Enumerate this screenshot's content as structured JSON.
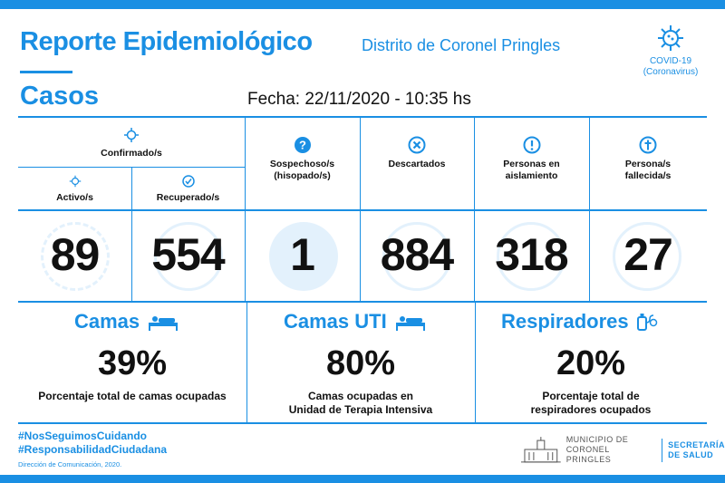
{
  "header": {
    "title": "Reporte Epidemiológico",
    "subtitle": "Distrito de Coronel Pringles",
    "covid_line1": "COVID-19",
    "covid_line2": "(Coronavirus)"
  },
  "casos": {
    "title": "Casos",
    "fecha": "Fecha: 22/11/2020 - 10:35 hs"
  },
  "columns": {
    "confirmados": "Confirmado/s",
    "activos": "Activo/s",
    "recuperados": "Recuperado/s",
    "sospechosos_line1": "Sospechoso/s",
    "sospechosos_line2": "(hisopado/s)",
    "descartados": "Descartados",
    "aislamiento_line1": "Personas en",
    "aislamiento_line2": "aislamiento",
    "fallecidos_line1": "Persona/s",
    "fallecidos_line2": "fallecida/s"
  },
  "values": {
    "activos": "89",
    "recuperados": "554",
    "sospechosos": "1",
    "descartados": "884",
    "aislamiento": "318",
    "fallecidos": "27"
  },
  "ocupacion": {
    "camas_title": "Camas",
    "camas_pct": "39%",
    "camas_label": "Porcentaje total de camas ocupadas",
    "uti_title": "Camas UTI",
    "uti_pct": "80%",
    "uti_label_line1": "Camas ocupadas en",
    "uti_label_line2": "Unidad de Terapia Intensiva",
    "resp_title": "Respiradores",
    "resp_pct": "20%",
    "resp_label_line1": "Porcentaje total de",
    "resp_label_line2": "respiradores ocupados"
  },
  "footer": {
    "hashtag1": "#NosSeguimosCuidando",
    "hashtag2": "#ResponsabilidadCiudadana",
    "credit": "Dirección de Comunicación, 2020.",
    "muni_line1": "MUNICIPIO DE",
    "muni_line2": "CORONEL PRINGLES",
    "secre_line1": "SECRETARÍA",
    "secre_line2": "DE SALUD"
  },
  "colors": {
    "accent": "#1a8fe3",
    "light": "#e3f1fc",
    "text": "#111111"
  }
}
